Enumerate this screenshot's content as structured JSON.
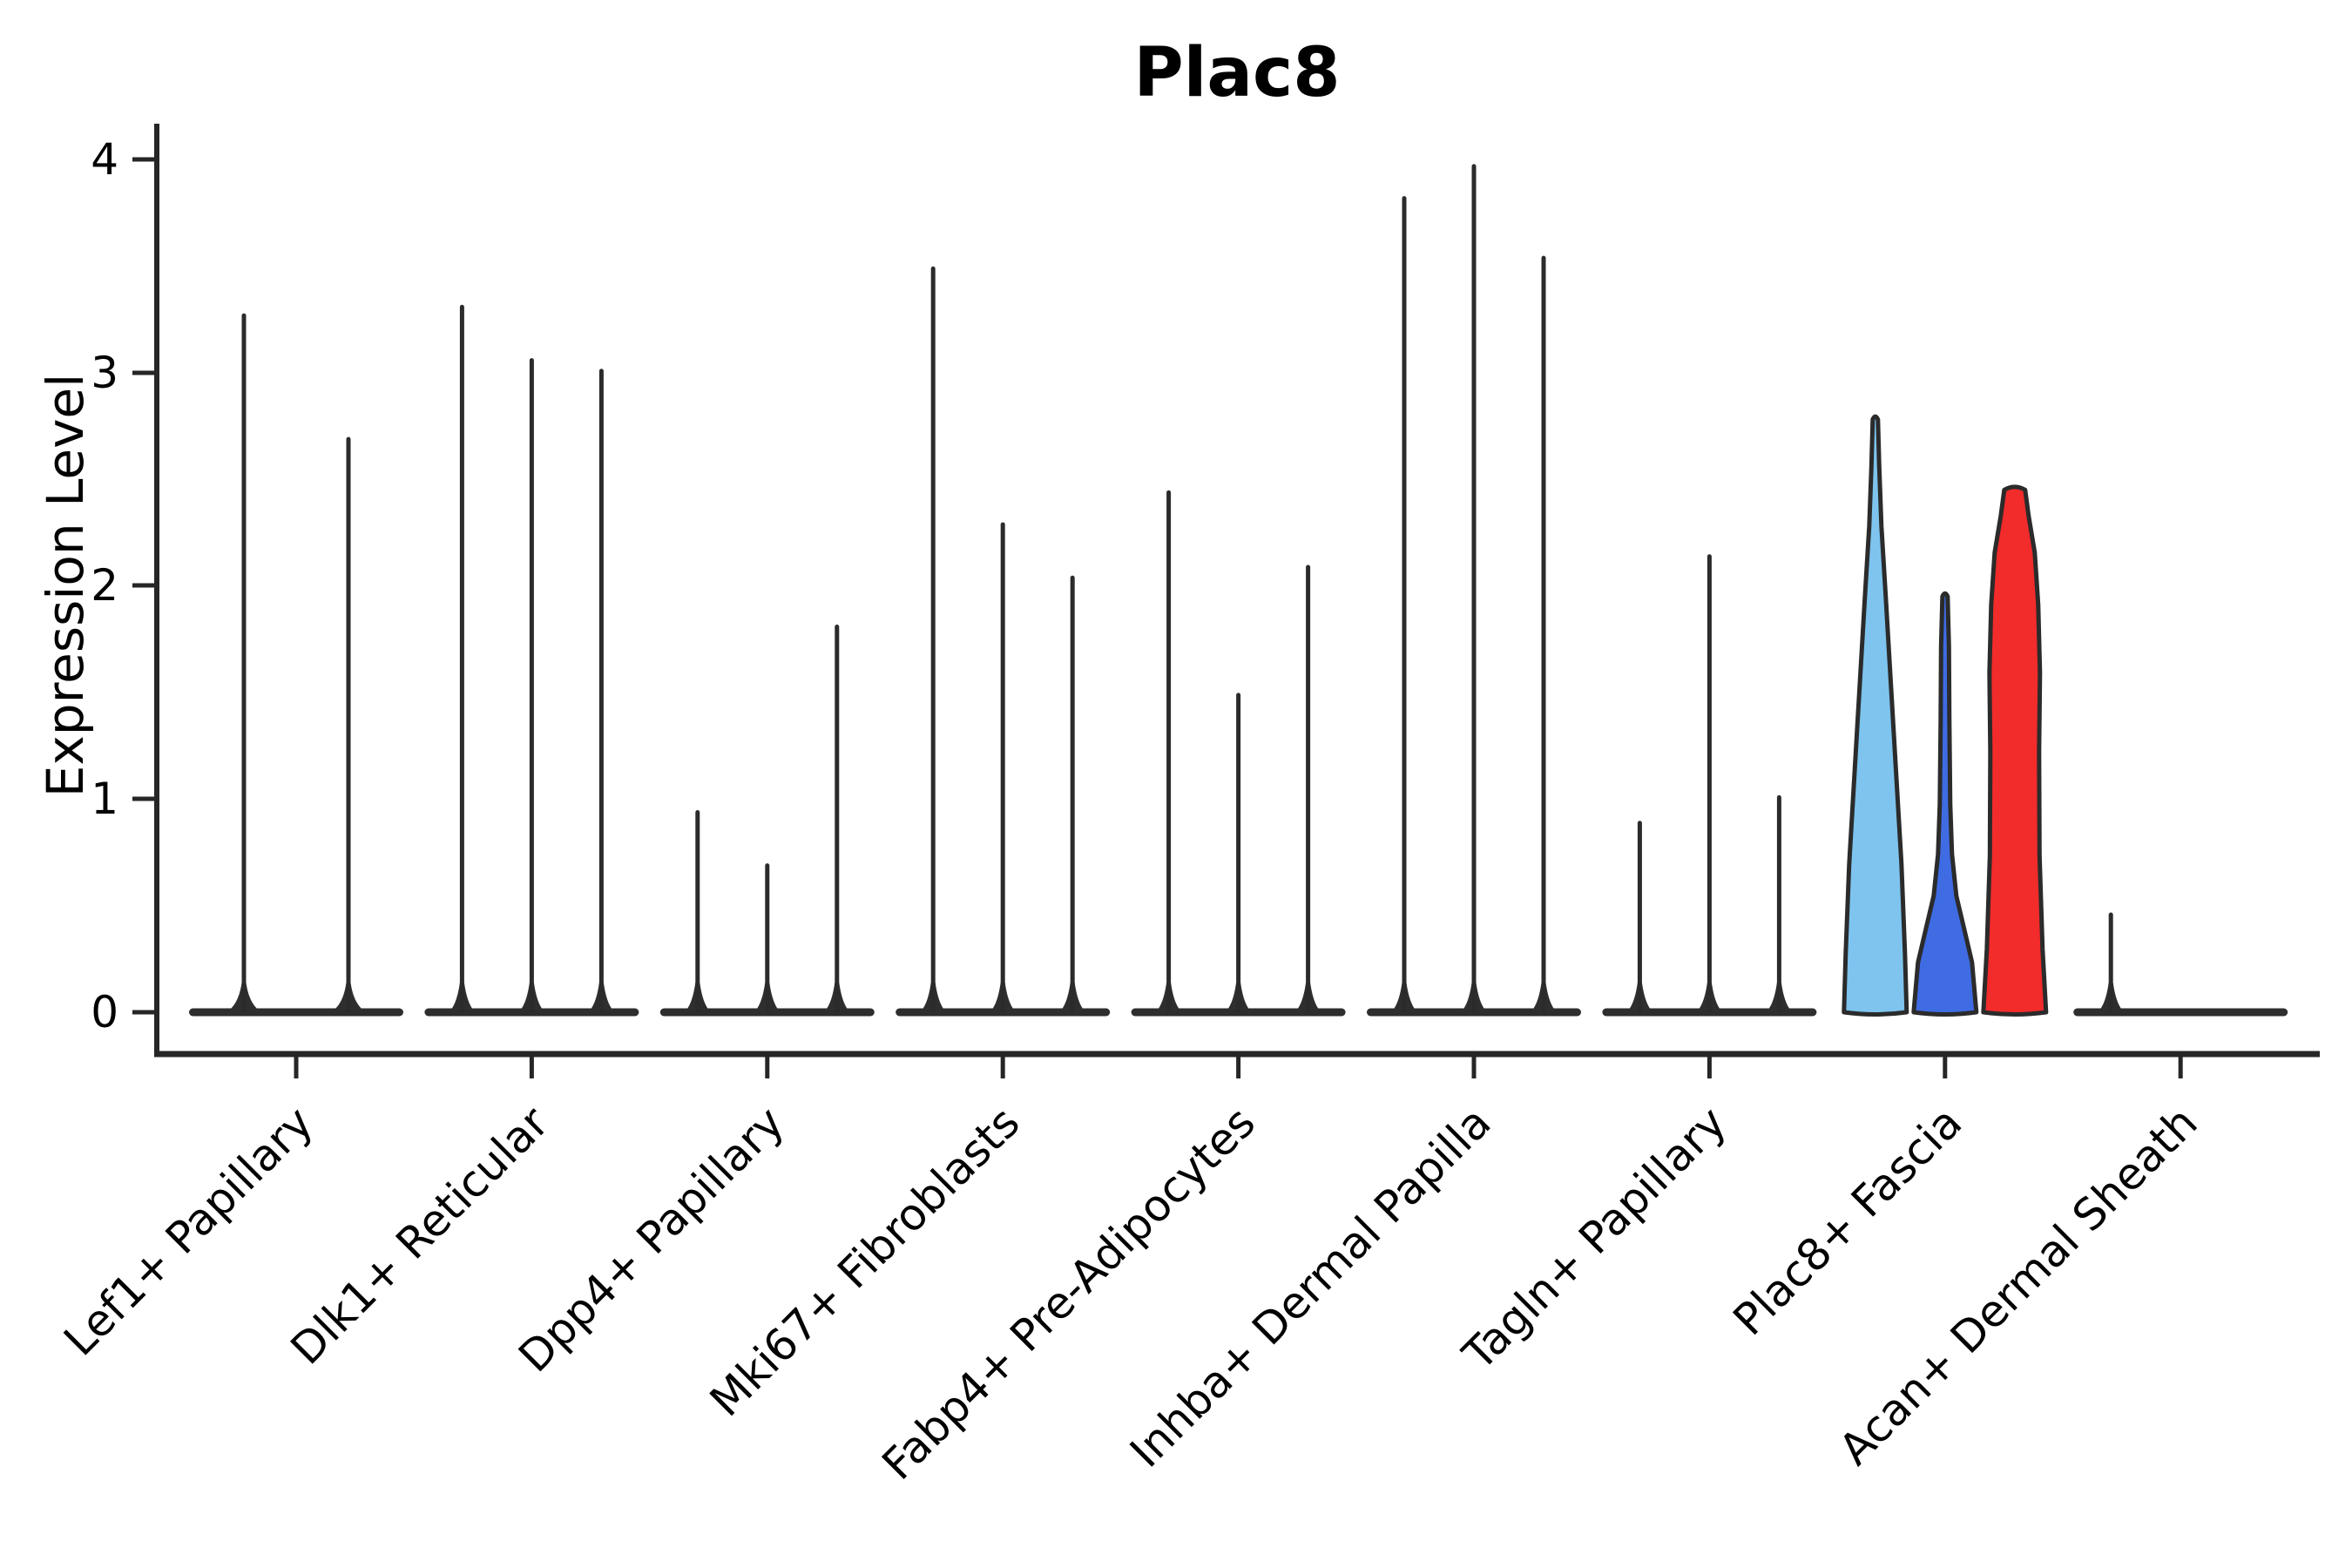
{
  "chart_data": {
    "type": "violin",
    "title": "Plac8",
    "ylabel": "Expression Level",
    "xlabel": "",
    "ylim": [
      0,
      4
    ],
    "yticks": [
      0,
      1,
      2,
      3,
      4
    ],
    "grid": false,
    "legend": "none",
    "categories": [
      "Lef1+ Papillary",
      "Dlk1+ Reticular",
      "Dpp4+ Papillary",
      "Mki67+ Fibroblasts",
      "Fabp4+ Pre-Adipocytes",
      "Inhba+ Dermal Papilla",
      "Tagln+ Papillary",
      "Plac8+ Fascia",
      "Acan+ Dermal Sheath"
    ],
    "groups": [
      {
        "category": "Lef1+ Papillary",
        "violins": [
          {
            "max": 3.28
          },
          {
            "max": 2.7
          }
        ]
      },
      {
        "category": "Dlk1+ Reticular",
        "violins": [
          {
            "max": 3.32
          },
          {
            "max": 3.07
          },
          {
            "max": 3.02
          }
        ]
      },
      {
        "category": "Dpp4+ Papillary",
        "violins": [
          {
            "max": 0.95
          },
          {
            "max": 0.7
          },
          {
            "max": 1.82
          }
        ]
      },
      {
        "category": "Mki67+ Fibroblasts",
        "violins": [
          {
            "max": 3.5
          },
          {
            "max": 2.3
          },
          {
            "max": 2.05
          }
        ]
      },
      {
        "category": "Fabp4+ Pre-Adipocytes",
        "violins": [
          {
            "max": 2.45
          },
          {
            "max": 1.5
          },
          {
            "max": 2.1
          }
        ]
      },
      {
        "category": "Inhba+ Dermal Papilla",
        "violins": [
          {
            "max": 3.83
          },
          {
            "max": 3.98
          },
          {
            "max": 3.55
          }
        ]
      },
      {
        "category": "Tagln+ Papillary",
        "violins": [
          {
            "max": 0.9
          },
          {
            "max": 2.15
          },
          {
            "max": 1.02
          }
        ]
      },
      {
        "category": "Plac8+ Fascia",
        "highlighted": true,
        "violins": [
          {
            "max": 2.78,
            "fill": "#7EC4EE",
            "shape": "needle"
          },
          {
            "max": 1.95,
            "fill": "#3F6CE3",
            "shape": "bulge"
          },
          {
            "max": 2.45,
            "fill": "#F22B2B",
            "shape": "column"
          }
        ]
      },
      {
        "category": "Acan+ Dermal Sheath",
        "violins": [
          {
            "max": 0.47
          },
          {
            "max": 0
          },
          {
            "max": 0
          }
        ]
      }
    ],
    "colors": {
      "axis": "#262626",
      "violin_outline": "#2b2b2b",
      "highlight_lightblue": "#7EC4EE",
      "highlight_blue": "#3F6CE3",
      "highlight_red": "#F22B2B"
    }
  }
}
